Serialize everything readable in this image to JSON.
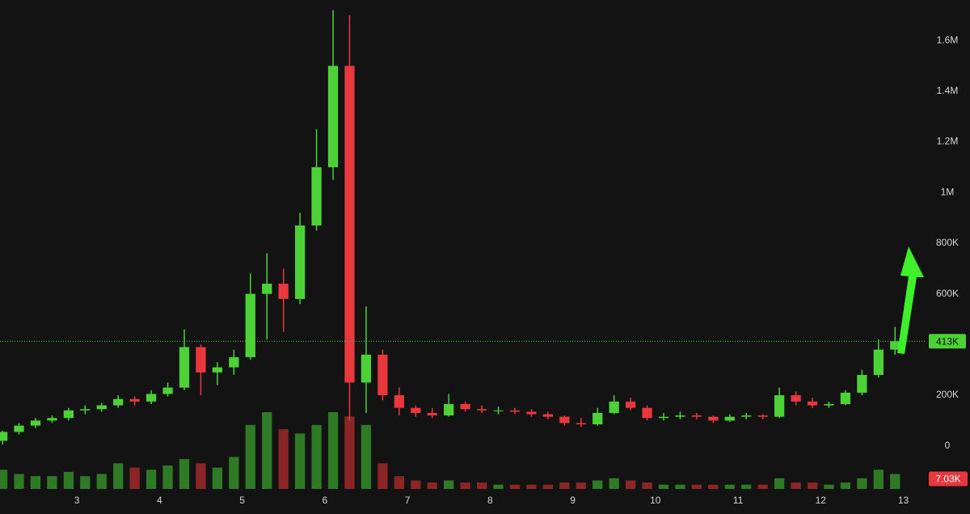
{
  "chart_data": {
    "type": "candlestick",
    "x": [
      2.1,
      2.3,
      2.5,
      2.7,
      2.9,
      3.1,
      3.3,
      3.5,
      3.7,
      3.9,
      4.1,
      4.3,
      4.5,
      4.7,
      4.9,
      5.1,
      5.3,
      5.5,
      5.7,
      5.9,
      6.1,
      6.3,
      6.5,
      6.7,
      6.9,
      7.1,
      7.3,
      7.5,
      7.7,
      7.9,
      8.1,
      8.3,
      8.5,
      8.7,
      8.9,
      9.1,
      9.3,
      9.5,
      9.7,
      9.9,
      10.1,
      10.3,
      10.5,
      10.7,
      10.9,
      11.1,
      11.3,
      11.5,
      11.7,
      11.9,
      12.1,
      12.3,
      12.5,
      12.7,
      12.9
    ],
    "open": [
      20000,
      55000,
      80000,
      100000,
      110000,
      140000,
      145000,
      160000,
      185000,
      175000,
      205000,
      230000,
      390000,
      290000,
      310000,
      350000,
      600000,
      640000,
      580000,
      870000,
      1100000,
      1500000,
      250000,
      360000,
      200000,
      150000,
      130000,
      120000,
      165000,
      145000,
      140000,
      140000,
      135000,
      125000,
      115000,
      90000,
      85000,
      130000,
      175000,
      150000,
      110000,
      115000,
      120000,
      115000,
      100000,
      115000,
      120000,
      115000,
      200000,
      175000,
      160000,
      165000,
      210000,
      280000,
      380000
    ],
    "high": [
      60000,
      90000,
      110000,
      120000,
      150000,
      160000,
      170000,
      200000,
      195000,
      220000,
      250000,
      460000,
      400000,
      330000,
      380000,
      680000,
      760000,
      700000,
      920000,
      1250000,
      1720000,
      1700000,
      550000,
      380000,
      230000,
      160000,
      150000,
      205000,
      175000,
      160000,
      155000,
      150000,
      145000,
      135000,
      120000,
      110000,
      150000,
      200000,
      190000,
      160000,
      130000,
      135000,
      130000,
      120000,
      125000,
      130000,
      125000,
      230000,
      215000,
      190000,
      175000,
      220000,
      300000,
      420000,
      470000
    ],
    "low": [
      5000,
      45000,
      70000,
      90000,
      100000,
      125000,
      135000,
      150000,
      160000,
      165000,
      195000,
      220000,
      200000,
      240000,
      280000,
      340000,
      420000,
      450000,
      560000,
      850000,
      1050000,
      100000,
      130000,
      180000,
      120000,
      115000,
      110000,
      115000,
      135000,
      130000,
      125000,
      125000,
      115000,
      105000,
      80000,
      75000,
      80000,
      125000,
      140000,
      100000,
      100000,
      105000,
      105000,
      90000,
      95000,
      105000,
      105000,
      110000,
      160000,
      150000,
      150000,
      160000,
      200000,
      270000,
      360000
    ],
    "close": [
      55000,
      80000,
      100000,
      110000,
      140000,
      145000,
      160000,
      185000,
      175000,
      205000,
      230000,
      390000,
      290000,
      310000,
      350000,
      600000,
      640000,
      580000,
      870000,
      1100000,
      1500000,
      250000,
      360000,
      200000,
      150000,
      130000,
      120000,
      165000,
      145000,
      140000,
      140000,
      135000,
      125000,
      115000,
      90000,
      85000,
      130000,
      175000,
      150000,
      110000,
      115000,
      120000,
      115000,
      100000,
      115000,
      120000,
      115000,
      200000,
      175000,
      160000,
      165000,
      210000,
      280000,
      380000,
      413000
    ],
    "volume": [
      9000,
      7000,
      6000,
      6000,
      8000,
      6000,
      7000,
      12000,
      10000,
      9000,
      11000,
      14000,
      12000,
      10000,
      15000,
      30000,
      36000,
      28000,
      26000,
      30000,
      36000,
      34000,
      30000,
      12000,
      6000,
      4000,
      3000,
      4000,
      3000,
      3000,
      2000,
      2000,
      2000,
      2000,
      3000,
      3000,
      4000,
      5000,
      4000,
      3000,
      2000,
      2000,
      2000,
      2000,
      2000,
      2000,
      2000,
      5000,
      3000,
      3000,
      2000,
      3000,
      5000,
      9000,
      7030
    ],
    "up_color": "#4cd137",
    "down_color": "#e8383d",
    "volume_up_color": "#2f7a25",
    "volume_down_color": "#8c2626",
    "xlim": [
      2.07,
      13.22
    ],
    "xticks": [
      3,
      4,
      5,
      6,
      7,
      8,
      9,
      10,
      11,
      12,
      13
    ],
    "ylim": [
      -170000,
      1760000
    ],
    "yticks": [
      0,
      {
        "value": 200000,
        "label": "200K"
      },
      {
        "value": 600000,
        "label": "600K"
      },
      {
        "value": 800000,
        "label": "800K"
      },
      {
        "value": 1000000,
        "label": "1M"
      },
      {
        "value": 1200000,
        "label": "1.2M"
      },
      {
        "value": 1400000,
        "label": "1.4M"
      },
      {
        "value": 1600000,
        "label": "1.6M"
      }
    ],
    "grid": false,
    "last_price": {
      "value": 413000,
      "label": "413K"
    },
    "last_volume": {
      "value": 7030,
      "label": "7.03K"
    }
  }
}
